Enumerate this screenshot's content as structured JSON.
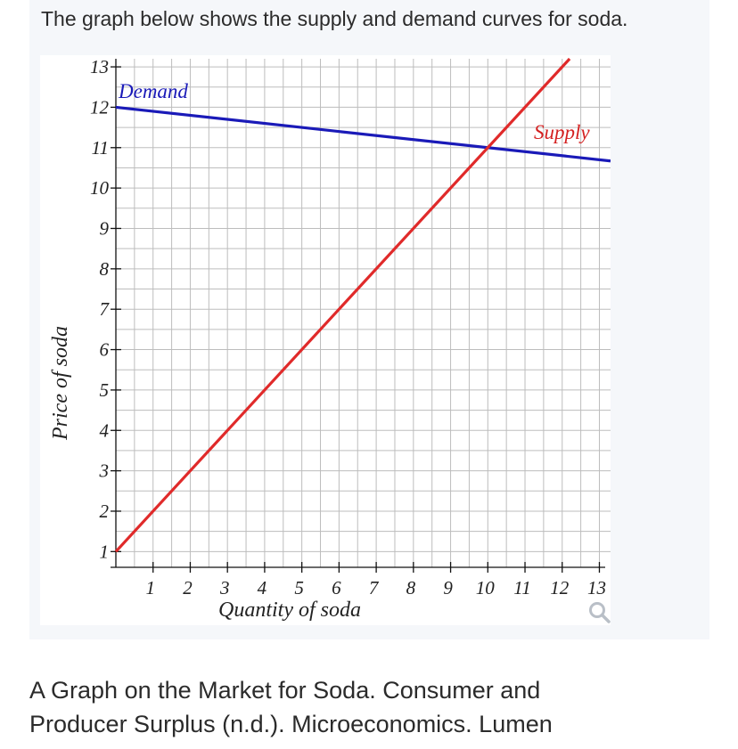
{
  "question_text": "The graph below shows the supply and demand curves for soda.",
  "caption_line1": "A Graph on the Market for Soda. Consumer and",
  "caption_line2": "Producer Surplus (n.d.). Microeconomics. Lumen",
  "zoom_icon": "magnifier-icon",
  "colors": {
    "demand": "#1a1ab8",
    "supply": "#e02a2a",
    "grid": "#bdbdbd",
    "axis": "#111111",
    "label_demand": "#1a1ab8",
    "label_supply": "#d42020"
  },
  "chart_data": {
    "type": "line",
    "xlabel": "Quantity of soda",
    "ylabel": "Price of soda",
    "xlim": [
      0,
      13.3
    ],
    "ylim": [
      0.5,
      13.2
    ],
    "x_ticks": [
      "1",
      "2",
      "3",
      "4",
      "5",
      "6",
      "7",
      "8",
      "9",
      "10",
      "11",
      "12",
      "13"
    ],
    "y_ticks": [
      "1",
      "2",
      "3",
      "4",
      "5",
      "6",
      "7",
      "8",
      "9",
      "10",
      "11",
      "12",
      "13"
    ],
    "grid": true,
    "series": [
      {
        "name": "Demand",
        "x": [
          0,
          13.3
        ],
        "y": [
          12,
          10.67
        ]
      },
      {
        "name": "Supply",
        "x": [
          0,
          12.2
        ],
        "y": [
          1,
          13.2
        ]
      }
    ]
  }
}
